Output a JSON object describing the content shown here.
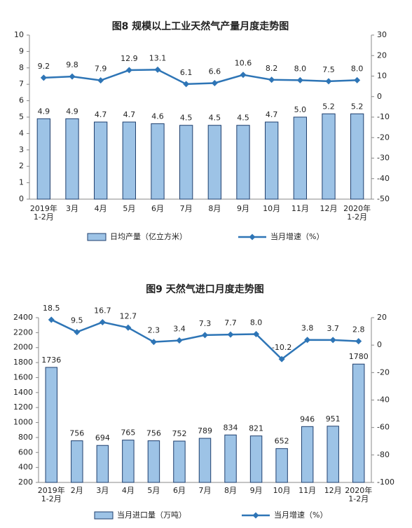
{
  "chart_data": [
    {
      "type": "bar",
      "title": "图8 规模以上工业天然气产量月度走势图",
      "categories": [
        "2019年\n1-2月",
        "3月",
        "4月",
        "5月",
        "6月",
        "7月",
        "8月",
        "9月",
        "10月",
        "11月",
        "12月",
        "2020年\n1-2月"
      ],
      "series": [
        {
          "name": "日均产量（亿立方米）",
          "type": "bar",
          "color": "#9dc3e6",
          "values": [
            4.9,
            4.9,
            4.7,
            4.7,
            4.6,
            4.5,
            4.5,
            4.5,
            4.7,
            5.0,
            5.2,
            5.2
          ],
          "value_labels": [
            "4.9",
            "4.9",
            "4.7",
            "4.7",
            "4.6",
            "4.5",
            "4.5",
            "4.5",
            "4.7",
            "5.0",
            "5.2",
            "5.2"
          ]
        },
        {
          "name": "当月增速（%）",
          "type": "line",
          "axis": "y2",
          "color": "#2e75b6",
          "values": [
            9.2,
            9.8,
            7.9,
            12.9,
            13.1,
            6.1,
            6.6,
            10.6,
            8.2,
            8.0,
            7.5,
            8.0
          ],
          "value_labels": [
            "9.2",
            "9.8",
            "7.9",
            "12.9",
            "13.1",
            "6.1",
            "6.6",
            "10.6",
            "8.2",
            "8.0",
            "7.5",
            "8.0"
          ]
        }
      ],
      "ylim": [
        0,
        10
      ],
      "yticks": [
        0,
        1,
        2,
        3,
        4,
        5,
        6,
        7,
        8,
        9,
        10
      ],
      "y2lim": [
        -50,
        30
      ],
      "y2ticks": [
        -50,
        -40,
        -30,
        -20,
        -10,
        0,
        10,
        20,
        30
      ]
    },
    {
      "type": "bar",
      "title": "图9 天然气进口月度走势图",
      "categories": [
        "2019年\n1-2月",
        "2月",
        "3月",
        "4月",
        "5月",
        "6月",
        "7月",
        "8月",
        "9月",
        "10月",
        "11月",
        "12月",
        "2020年\n1-2月"
      ],
      "series": [
        {
          "name": "当月进口量（万吨）",
          "type": "bar",
          "color": "#9dc3e6",
          "values": [
            1736,
            756,
            694,
            765,
            756,
            752,
            789,
            834,
            821,
            652,
            946,
            951,
            1780
          ]
        },
        {
          "name": "当月增速（%）",
          "type": "line",
          "axis": "y2",
          "color": "#2e75b6",
          "values": [
            18.5,
            9.5,
            16.7,
            12.7,
            2.3,
            3.4,
            7.3,
            7.7,
            8.0,
            -10.2,
            3.8,
            3.7,
            2.8
          ],
          "value_labels": [
            "18.5",
            "9.5",
            "16.7",
            "12.7",
            "2.3",
            "3.4",
            "7.3",
            "7.7",
            "8.0",
            "-10.2",
            "3.8",
            "3.7",
            "2.8"
          ]
        }
      ],
      "ylim": [
        200,
        2400
      ],
      "yticks": [
        200,
        400,
        600,
        800,
        1000,
        1200,
        1400,
        1600,
        1800,
        2000,
        2200,
        2400
      ],
      "y2lim": [
        -100,
        20
      ],
      "y2ticks": [
        -100,
        -80,
        -60,
        -40,
        -20,
        0,
        20
      ]
    }
  ]
}
